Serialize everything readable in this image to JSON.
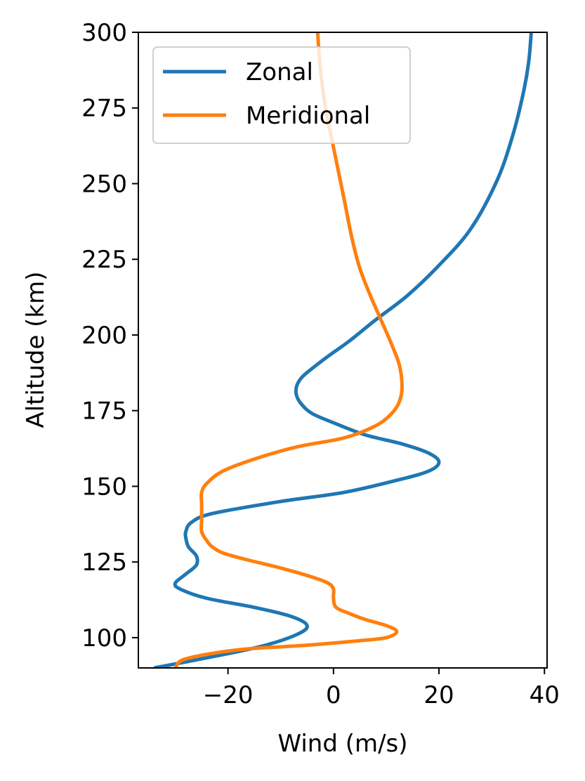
{
  "chart_data": {
    "type": "line",
    "title": "",
    "xlabel": "Wind (m/s)",
    "ylabel": "Altitude (km)",
    "xlim": [
      -37,
      40.5
    ],
    "ylim": [
      90,
      300
    ],
    "xticks": [
      -20,
      0,
      20,
      40
    ],
    "xtick_labels": [
      "−20",
      "0",
      "20",
      "40"
    ],
    "yticks": [
      100,
      125,
      150,
      175,
      200,
      225,
      250,
      275,
      300
    ],
    "ytick_labels": [
      "100",
      "125",
      "150",
      "175",
      "200",
      "225",
      "250",
      "275",
      "300"
    ],
    "grid": false,
    "legend_position": "top-left",
    "series": [
      {
        "name": "Zonal",
        "color": "#1f77b4",
        "points": [
          [
            -34,
            90
          ],
          [
            -25,
            93
          ],
          [
            -14,
            97
          ],
          [
            -7,
            101
          ],
          [
            -5,
            104
          ],
          [
            -8,
            107
          ],
          [
            -15,
            110
          ],
          [
            -24,
            113
          ],
          [
            -29,
            116
          ],
          [
            -30,
            118
          ],
          [
            -28,
            121
          ],
          [
            -26,
            124
          ],
          [
            -26,
            127
          ],
          [
            -27.5,
            130
          ],
          [
            -28,
            133
          ],
          [
            -28,
            135
          ],
          [
            -27,
            138
          ],
          [
            -23,
            141
          ],
          [
            -10,
            145
          ],
          [
            2,
            148
          ],
          [
            12,
            152
          ],
          [
            18,
            155
          ],
          [
            20,
            158
          ],
          [
            18,
            161
          ],
          [
            13,
            164
          ],
          [
            6,
            167
          ],
          [
            0,
            171
          ],
          [
            -4,
            174
          ],
          [
            -6,
            177
          ],
          [
            -7,
            180
          ],
          [
            -7,
            183
          ],
          [
            -6,
            186
          ],
          [
            -4,
            189
          ],
          [
            -1,
            193
          ],
          [
            3,
            198
          ],
          [
            8,
            205
          ],
          [
            14,
            213
          ],
          [
            20,
            223
          ],
          [
            26,
            235
          ],
          [
            31,
            251
          ],
          [
            34,
            266
          ],
          [
            36,
            280
          ],
          [
            37,
            290
          ],
          [
            37.5,
            300
          ]
        ]
      },
      {
        "name": "Meridional",
        "color": "#ff7f0e",
        "points": [
          [
            -30,
            90
          ],
          [
            -28,
            93
          ],
          [
            -18,
            96
          ],
          [
            -5,
            97.5
          ],
          [
            5,
            99
          ],
          [
            10,
            100
          ],
          [
            12,
            102
          ],
          [
            10,
            104
          ],
          [
            6,
            106
          ],
          [
            3,
            108
          ],
          [
            0.5,
            110
          ],
          [
            0,
            113
          ],
          [
            0,
            116
          ],
          [
            -1,
            118
          ],
          [
            -4,
            120
          ],
          [
            -10,
            123
          ],
          [
            -17,
            126
          ],
          [
            -21,
            128
          ],
          [
            -23,
            130
          ],
          [
            -24,
            132
          ],
          [
            -25,
            135
          ],
          [
            -25,
            139
          ],
          [
            -25,
            144
          ],
          [
            -25,
            148
          ],
          [
            -24,
            151
          ],
          [
            -21,
            155
          ],
          [
            -15,
            159
          ],
          [
            -7,
            163
          ],
          [
            2,
            166
          ],
          [
            8,
            170
          ],
          [
            11,
            174
          ],
          [
            12.5,
            178
          ],
          [
            13,
            183
          ],
          [
            12.5,
            190
          ],
          [
            11,
            197
          ],
          [
            9,
            205
          ],
          [
            7,
            213
          ],
          [
            5,
            222
          ],
          [
            3.5,
            232
          ],
          [
            2,
            245
          ],
          [
            0,
            262
          ],
          [
            -1.5,
            275
          ],
          [
            -2.5,
            288
          ],
          [
            -3,
            300
          ]
        ]
      }
    ]
  }
}
